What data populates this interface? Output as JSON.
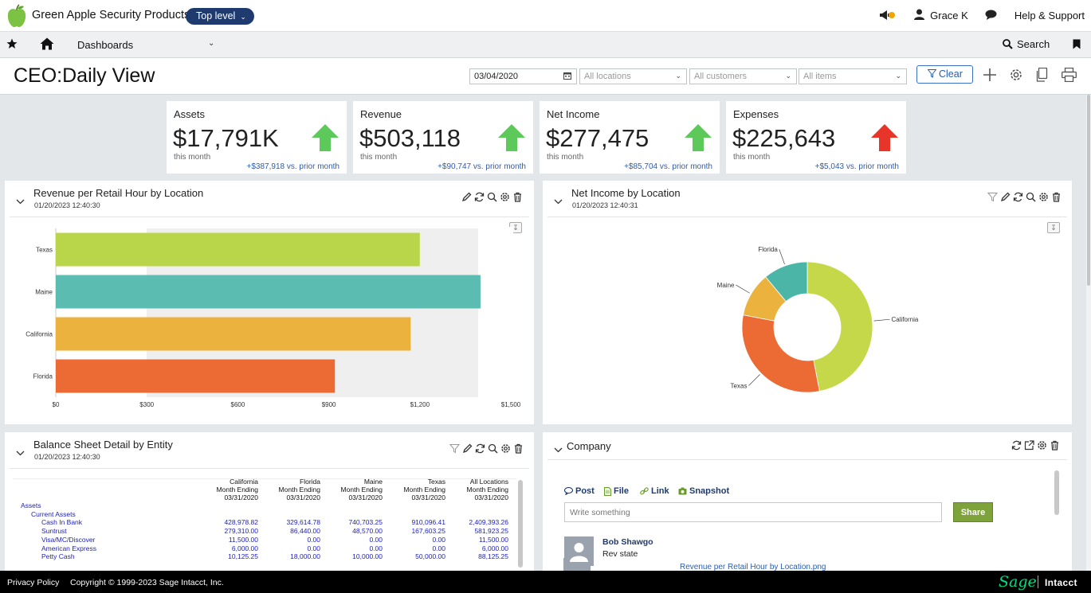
{
  "topbar": {
    "company": "Green Apple Security Products",
    "entity": "Top level",
    "user": "Grace K",
    "help": "Help & Support",
    "icons": [
      "apple-logo",
      "megaphone-icon",
      "user-icon",
      "chat-icon"
    ]
  },
  "navbar": {
    "dashboards": "Dashboards",
    "search": "Search",
    "icons": [
      "star-icon",
      "home-icon",
      "search-icon",
      "bookmark-icon"
    ]
  },
  "page": {
    "title": "CEO:Daily View",
    "date_value": "03/04/2020",
    "locations_placeholder": "All locations",
    "customers_placeholder": "All customers",
    "items_placeholder": "All items",
    "clear": "Clear"
  },
  "kpis": [
    {
      "label": "Assets",
      "value": "$17,791K",
      "sub": "this month",
      "delta": "+$387,918 vs. prior month",
      "trend": "up"
    },
    {
      "label": "Revenue",
      "value": "$503,118",
      "sub": "this month",
      "delta": "+$90,747 vs. prior month",
      "trend": "up"
    },
    {
      "label": "Net Income",
      "value": "$277,475",
      "sub": "this month",
      "delta": "+$85,704 vs. prior month",
      "trend": "up"
    },
    {
      "label": "Expenses",
      "value": "$225,643",
      "sub": "this month",
      "delta": "+$5,043 vs. prior month",
      "trend": "up-red"
    }
  ],
  "colors": {
    "up_arrow": "#5cc95a",
    "red_arrow": "#e8352a",
    "link": "#2a5db0",
    "navy": "#1e3a6e",
    "share": "#7ea33b"
  },
  "panels": {
    "revenue": {
      "title": "Revenue per Retail Hour by Location",
      "stamp": "01/20/2023 12:40:30"
    },
    "netincome": {
      "title": "Net Income by Location",
      "stamp": "01/20/2023 12:40:31"
    },
    "balance": {
      "title": "Balance Sheet Detail by Entity",
      "stamp": "01/20/2023 12:40:30"
    },
    "company": {
      "title": "Company"
    }
  },
  "chart_data": [
    {
      "type": "bar",
      "orientation": "horizontal",
      "categories": [
        "Texas",
        "Maine",
        "California",
        "Florida"
      ],
      "values": [
        1200,
        1400,
        1170,
        920
      ],
      "colors": [
        "#b9d549",
        "#5bbcb1",
        "#ecb23e",
        "#ec6a34"
      ],
      "xlim": [
        0,
        1500
      ],
      "xticks": [
        "$0",
        "$300",
        "$600",
        "$900",
        "$1,200",
        "$1,500"
      ],
      "grid": false
    },
    {
      "type": "pie",
      "donut": true,
      "categories": [
        "California",
        "Texas",
        "Maine",
        "Florida"
      ],
      "values": [
        47,
        31,
        11,
        11
      ],
      "colors": [
        "#c5d84a",
        "#ec6a34",
        "#ecb23e",
        "#4bb5a8"
      ]
    }
  ],
  "balance_table": {
    "headers": [
      [
        "California",
        "Month Ending",
        "03/31/2020"
      ],
      [
        "Florida",
        "Month Ending",
        "03/31/2020"
      ],
      [
        "Maine",
        "Month Ending",
        "03/31/2020"
      ],
      [
        "Texas",
        "Month Ending",
        "03/31/2020"
      ],
      [
        "All Locations",
        "Month Ending",
        "03/31/2020"
      ]
    ],
    "rows": [
      {
        "name": "Assets",
        "indent": 0,
        "values": [
          "",
          "",
          "",
          "",
          ""
        ]
      },
      {
        "name": "Current Assets",
        "indent": 1,
        "values": [
          "",
          "",
          "",
          "",
          ""
        ]
      },
      {
        "name": "Cash In Bank",
        "indent": 2,
        "values": [
          "428,978.82",
          "329,614.78",
          "740,703.25",
          "910,096.41",
          "2,409,393.26"
        ]
      },
      {
        "name": "Suntrust",
        "indent": 2,
        "values": [
          "279,310.00",
          "86,440.00",
          "48,570.00",
          "167,603.25",
          "581,923.25"
        ]
      },
      {
        "name": "Visa/MC/Discover",
        "indent": 2,
        "values": [
          "11,500.00",
          "0.00",
          "0.00",
          "0.00",
          "11,500.00"
        ]
      },
      {
        "name": "American Express",
        "indent": 2,
        "values": [
          "6,000.00",
          "0.00",
          "0.00",
          "0.00",
          "6,000.00"
        ]
      },
      {
        "name": "Petty Cash",
        "indent": 2,
        "values": [
          "10,125.25",
          "18,000.00",
          "10,000.00",
          "50,000.00",
          "88,125.25"
        ]
      }
    ]
  },
  "company": {
    "tabs": [
      "Post",
      "File",
      "Link",
      "Snapshot"
    ],
    "write_placeholder": "Write something",
    "share": "Share",
    "post_author": "Bob Shawgo",
    "post_text": "Rev state",
    "post_attachment": "Revenue per Retail Hour by Location.png"
  },
  "footer": {
    "privacy": "Privacy Policy",
    "copyright": "Copyright © 1999-2023 Sage Intacct, Inc.",
    "brand1": "Sage",
    "brand2": "Intacct"
  }
}
